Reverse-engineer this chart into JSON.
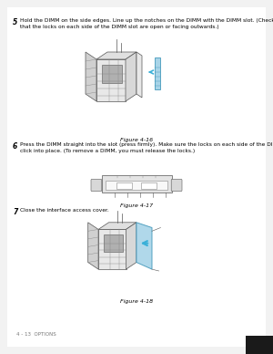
{
  "bg_color": "#f2f2f2",
  "content_bg": "#ffffff",
  "step5_number": "5",
  "step5_text": "Hold the DIMM on the side edges. Line up the notches on the DIMM with the DIMM slot. (Check\nthat the locks on each side of the DIMM slot are open or facing outwards.)",
  "fig416_label": "Figure 4-16",
  "step6_number": "6",
  "step6_text": "Press the DIMM straight into the slot (press firmly). Make sure the locks on each side of the DIMM\nclick into place. (To remove a DIMM, you must release the locks.)",
  "fig417_label": "Figure 4-17",
  "step7_number": "7",
  "step7_text": "Close the interface access cover.",
  "fig418_label": "Figure 4-18",
  "footer_text": "4 - 13  OPTIONS",
  "arrow_color": "#3ab0d8",
  "dark": "#555555",
  "mid": "#888888",
  "light": "#cccccc",
  "vlight": "#e8e8e8",
  "blue_fill": "#a8d4e8",
  "blue_edge": "#4499bb"
}
